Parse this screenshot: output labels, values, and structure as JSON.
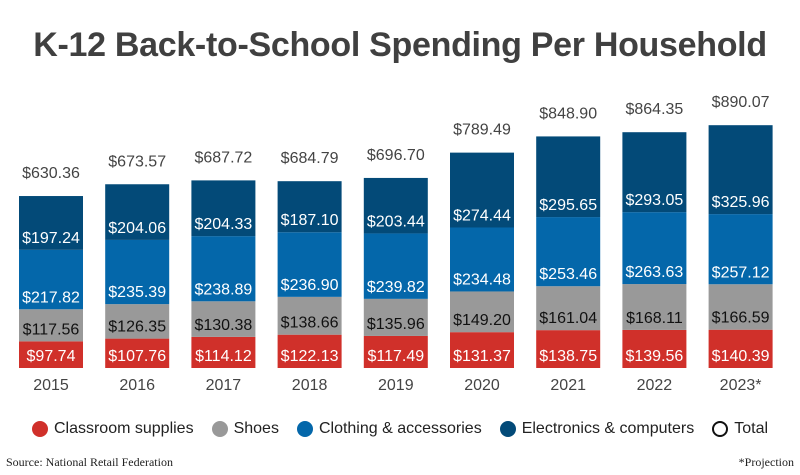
{
  "chart_data": {
    "type": "bar",
    "stacked": true,
    "title": "K-12 Back-to-School Spending Per Household",
    "categories": [
      "2015",
      "2016",
      "2017",
      "2018",
      "2019",
      "2020",
      "2021",
      "2022",
      "2023*"
    ],
    "series": [
      {
        "name": "Classroom supplies",
        "color": "#d0302a",
        "label_color": "#ffffff",
        "values": [
          97.74,
          107.76,
          114.12,
          122.13,
          117.49,
          131.37,
          138.75,
          139.56,
          140.39
        ]
      },
      {
        "name": "Shoes",
        "color": "#999999",
        "label_color": "#111111",
        "values": [
          117.56,
          126.35,
          130.38,
          138.66,
          135.96,
          149.2,
          161.04,
          168.11,
          166.59
        ]
      },
      {
        "name": "Clothing & accessories",
        "color": "#0467aa",
        "label_color": "#ffffff",
        "values": [
          217.82,
          235.39,
          238.89,
          236.9,
          239.82,
          234.48,
          253.46,
          263.63,
          257.12
        ]
      },
      {
        "name": "Electronics & computers",
        "color": "#034a78",
        "label_color": "#ffffff",
        "values": [
          197.24,
          204.06,
          204.33,
          187.1,
          203.44,
          274.44,
          295.65,
          293.05,
          325.96
        ]
      }
    ],
    "totals_name": "Total",
    "totals": [
      630.36,
      673.57,
      687.72,
      684.79,
      696.7,
      789.49,
      848.9,
      864.35,
      890.07
    ],
    "value_prefix": "$",
    "ylim": [
      0,
      900
    ],
    "grid": false,
    "legend_position": "bottom"
  },
  "footer": {
    "source": "Source: National Retail Federation",
    "note": "*Projection"
  }
}
